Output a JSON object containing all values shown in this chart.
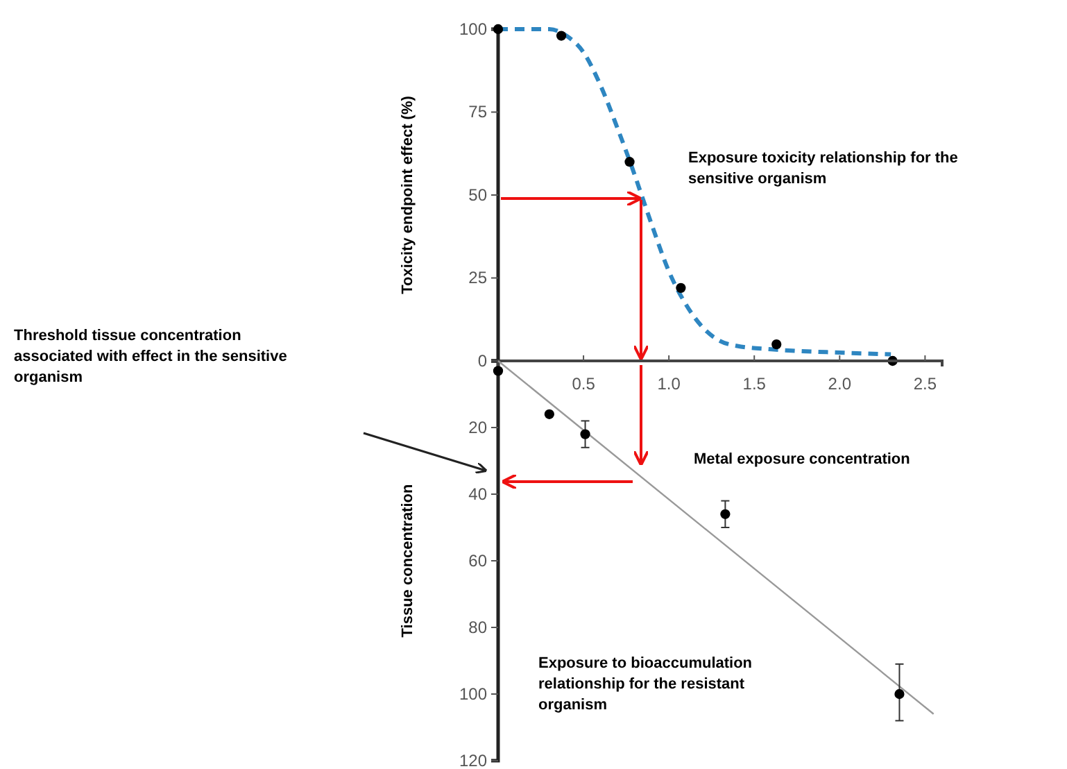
{
  "chart_data": [
    {
      "type": "scatter",
      "ylabel": "Toxicity endpoint effect (%)",
      "xlim": [
        0,
        2.6
      ],
      "ylim": [
        0,
        100
      ],
      "yticks": [
        25,
        50,
        75,
        100
      ],
      "tick_labels": "y",
      "grid": false,
      "annotations": [
        "Exposure toxicity relationship for the sensitive organism"
      ],
      "series": [
        {
          "color": "#000000",
          "marker": "circle",
          "x": [
            0,
            0.37,
            0.77,
            1.07,
            1.63,
            2.31
          ],
          "values": [
            100,
            98,
            60,
            22,
            5,
            0
          ]
        },
        {
          "type": "line",
          "marker": "none",
          "color": "#2e86c1",
          "line_style": "dashed",
          "x": [
            0,
            0.3,
            0.4,
            0.5,
            0.6,
            0.7,
            0.8,
            0.84,
            0.9,
            1.0,
            1.1,
            1.2,
            1.3,
            1.4,
            1.6,
            2.0,
            2.3
          ],
          "values": [
            100,
            100,
            98,
            93,
            83,
            70,
            56,
            50,
            41,
            27,
            17,
            10,
            6,
            4.5,
            3.5,
            2.5,
            2
          ]
        }
      ]
    },
    {
      "type": "scatter",
      "xlabel": "Metal exposure concentration",
      "ylabel": "Tissue concentration",
      "xlim": [
        0,
        2.6
      ],
      "xticks": [
        0.5,
        {
          "value": 1,
          "label": "1.0"
        },
        1.5,
        {
          "value": 2,
          "label": "2.0"
        },
        2.5
      ],
      "ylim": [
        120,
        0
      ],
      "yticks": [
        0,
        20,
        40,
        60,
        80,
        100,
        120
      ],
      "grid": false,
      "annotations": [
        "Threshold tissue concentration associated with effect in the sensitive organism",
        "Exposure to bioaccumulation relationship for the resistant organism"
      ],
      "series": [
        {
          "color": "#000000",
          "marker": "circle",
          "x": [
            0,
            0.3,
            0.51,
            1.33,
            2.35
          ],
          "values": [
            3,
            16,
            22,
            46,
            100
          ],
          "errors": [
            null,
            null,
            [
              18,
              26
            ],
            [
              42,
              50
            ],
            [
              91,
              108
            ]
          ]
        },
        {
          "type": "line",
          "marker": "none",
          "color": "#999999",
          "line_style": "solid",
          "x": [
            0,
            2.55
          ],
          "values": [
            0,
            106
          ]
        }
      ]
    }
  ]
}
